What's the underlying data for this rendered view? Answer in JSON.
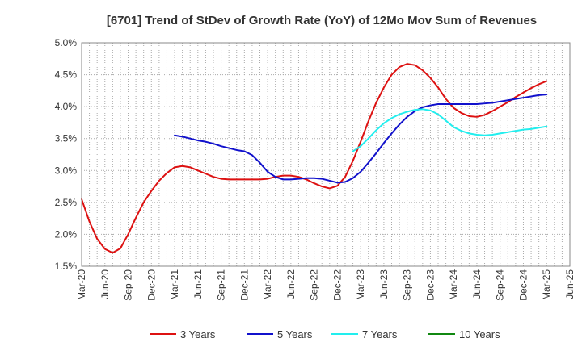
{
  "chart_data": {
    "type": "line",
    "title": "[6701]  Trend of StDev of Growth Rate (YoY) of 12Mo Mov Sum of Revenues",
    "xlabel": "",
    "ylabel": "",
    "ylim": [
      1.5,
      5.0
    ],
    "y_ticks": [
      "1.5%",
      "2.0%",
      "2.5%",
      "3.0%",
      "3.5%",
      "4.0%",
      "4.5%",
      "5.0%"
    ],
    "x_ticks": [
      "Mar-20",
      "Jun-20",
      "Sep-20",
      "Dec-20",
      "Mar-21",
      "Jun-21",
      "Sep-21",
      "Dec-21",
      "Mar-22",
      "Jun-22",
      "Sep-22",
      "Dec-22",
      "Mar-23",
      "Jun-23",
      "Sep-23",
      "Dec-23",
      "Mar-24",
      "Jun-24",
      "Sep-24",
      "Dec-24",
      "Mar-25",
      "Jun-25"
    ],
    "legend_position": "bottom",
    "grid": true,
    "series": [
      {
        "name": "3 Years",
        "color": "#dd1111",
        "values": [
          2.55,
          2.2,
          1.93,
          1.77,
          1.71,
          1.78,
          2.0,
          2.26,
          2.5,
          2.68,
          2.84,
          2.96,
          3.05,
          3.07,
          3.05,
          3.0,
          2.95,
          2.9,
          2.87,
          2.86,
          2.86,
          2.86,
          2.86,
          2.86,
          2.87,
          2.9,
          2.92,
          2.92,
          2.9,
          2.86,
          2.8,
          2.75,
          2.72,
          2.76,
          2.9,
          3.15,
          3.45,
          3.77,
          4.06,
          4.3,
          4.5,
          4.62,
          4.67,
          4.65,
          4.57,
          4.45,
          4.3,
          4.12,
          3.98,
          3.9,
          3.85,
          3.84,
          3.87,
          3.93,
          4.0,
          4.07,
          4.15,
          4.22,
          4.29,
          4.35,
          4.4
        ]
      },
      {
        "name": "5 Years",
        "color": "#1111cc",
        "values": [
          null,
          null,
          null,
          null,
          null,
          null,
          null,
          null,
          null,
          null,
          null,
          null,
          3.55,
          3.53,
          3.5,
          3.47,
          3.45,
          3.42,
          3.38,
          3.35,
          3.32,
          3.3,
          3.24,
          3.12,
          2.98,
          2.9,
          2.86,
          2.86,
          2.87,
          2.88,
          2.88,
          2.87,
          2.84,
          2.81,
          2.82,
          2.88,
          2.98,
          3.12,
          3.27,
          3.43,
          3.58,
          3.72,
          3.84,
          3.93,
          3.99,
          4.02,
          4.04,
          4.04,
          4.04,
          4.04,
          4.04,
          4.04,
          4.05,
          4.06,
          4.08,
          4.1,
          4.12,
          4.14,
          4.16,
          4.18,
          4.19
        ]
      },
      {
        "name": "7 Years",
        "color": "#22eeee",
        "values": [
          null,
          null,
          null,
          null,
          null,
          null,
          null,
          null,
          null,
          null,
          null,
          null,
          null,
          null,
          null,
          null,
          null,
          null,
          null,
          null,
          null,
          null,
          null,
          null,
          null,
          null,
          null,
          null,
          null,
          null,
          null,
          null,
          null,
          null,
          null,
          3.3,
          3.38,
          3.5,
          3.63,
          3.74,
          3.82,
          3.88,
          3.92,
          3.95,
          3.96,
          3.94,
          3.88,
          3.78,
          3.68,
          3.62,
          3.58,
          3.56,
          3.55,
          3.56,
          3.58,
          3.6,
          3.62,
          3.64,
          3.65,
          3.67,
          3.69
        ]
      },
      {
        "name": "10 Years",
        "color": "#118811",
        "values": []
      }
    ]
  }
}
